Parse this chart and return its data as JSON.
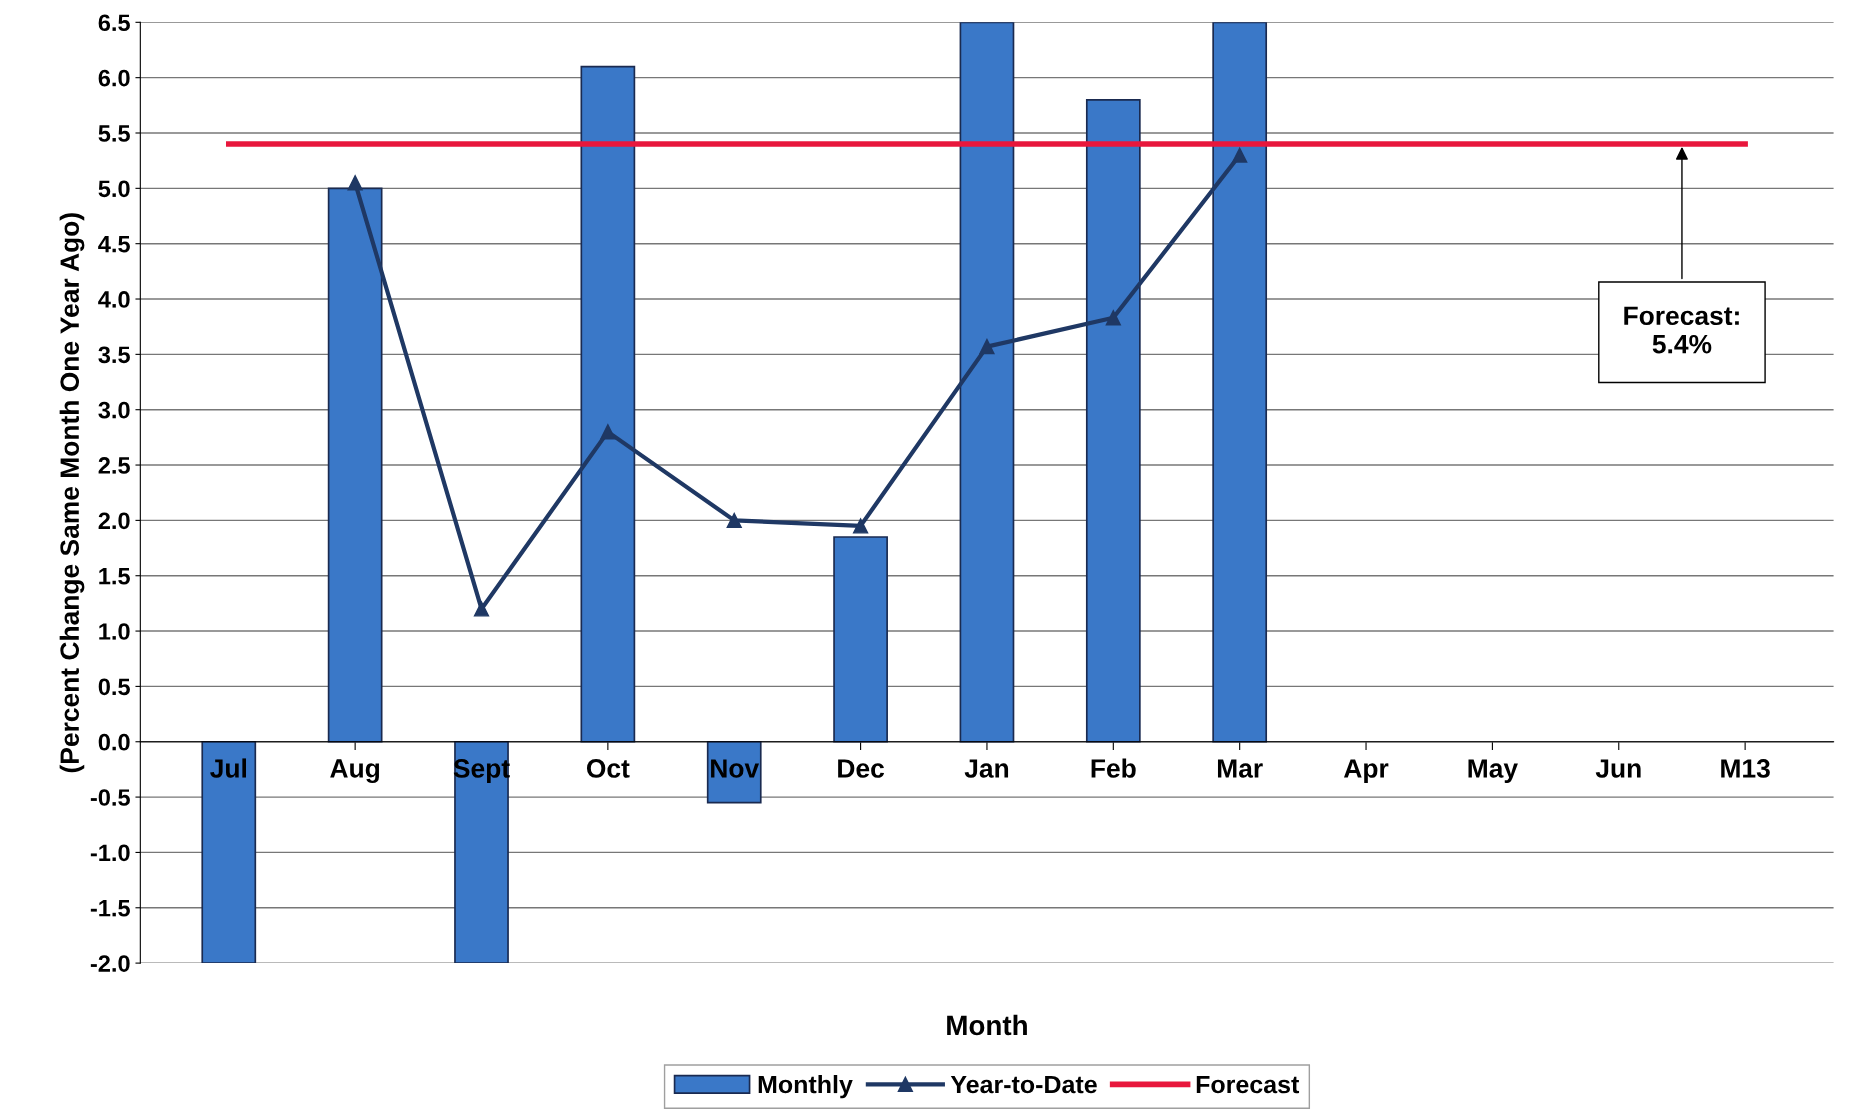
{
  "chart_data": {
    "type": "bar",
    "xlabel": "Month",
    "ylabel": "(Percent Change Same Month One Year Ago)",
    "categories": [
      "Jul",
      "Aug",
      "Sept",
      "Oct",
      "Nov",
      "Dec",
      "Jan",
      "Feb",
      "Mar",
      "Apr",
      "May",
      "Jun",
      "M13"
    ],
    "series": [
      {
        "name": "Monthly",
        "color": "#3a78c8",
        "values": [
          -2.0,
          5.0,
          -2.0,
          6.1,
          -0.55,
          1.85,
          6.5,
          5.8,
          6.5,
          null,
          null,
          null,
          null
        ]
      },
      {
        "name": "Year-to-Date",
        "type": "line",
        "color": "#1f3864",
        "marker": "triangle",
        "values": [
          null,
          5.05,
          1.2,
          2.8,
          2.0,
          1.95,
          3.57,
          3.83,
          5.3,
          null,
          null,
          null,
          null
        ]
      },
      {
        "name": "Forecast",
        "type": "line",
        "color": "#e8173c",
        "values": [
          5.4,
          5.4,
          5.4,
          5.4,
          5.4,
          5.4,
          5.4,
          5.4,
          5.4,
          5.4,
          5.4,
          5.4,
          5.4
        ]
      }
    ],
    "ylim": [
      -2,
      6.5
    ],
    "yticks": [
      {
        "value": -2,
        "label": "-2.0"
      },
      {
        "value": -1.5,
        "label": "-1.5"
      },
      {
        "value": -1,
        "label": "-1.0"
      },
      {
        "value": -0.5,
        "label": "-0.5"
      },
      {
        "value": 0,
        "label": "0.0"
      },
      {
        "value": 0.5,
        "label": "0.5"
      },
      {
        "value": 1,
        "label": "1.0"
      },
      {
        "value": 1.5,
        "label": "1.5"
      },
      {
        "value": 2,
        "label": "2.0"
      },
      {
        "value": 2.5,
        "label": "2.5"
      },
      {
        "value": 3,
        "label": "3.0"
      },
      {
        "value": 3.5,
        "label": "3.5"
      },
      {
        "value": 4,
        "label": "4.0"
      },
      {
        "value": 4.5,
        "label": "4.5"
      },
      {
        "value": 5,
        "label": "5.0"
      },
      {
        "value": 5.5,
        "label": "5.5"
      },
      {
        "value": 6,
        "label": "6.0"
      },
      {
        "value": 6.5,
        "label": "6.5"
      }
    ],
    "grid": "y",
    "legend": "bottom",
    "annotations": [
      "Forecast:\n5.4%"
    ]
  }
}
